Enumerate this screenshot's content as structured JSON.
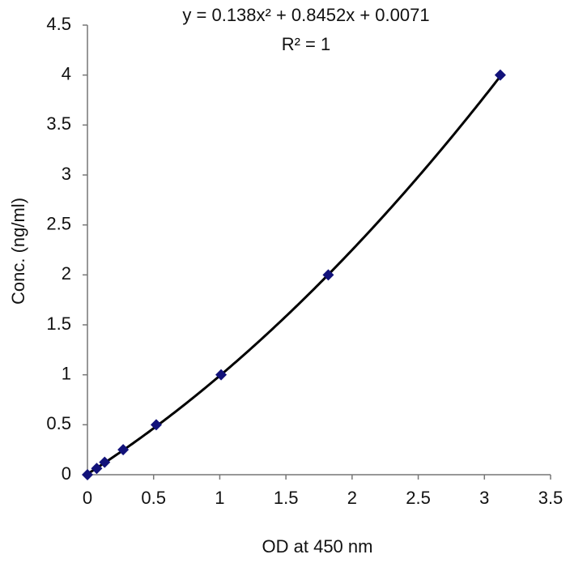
{
  "chart_data": {
    "type": "scatter",
    "equation": "y = 0.138x² + 0.8452x + 0.0071",
    "r_squared": "R² = 1",
    "x_label": "OD at 450 nm",
    "y_label": "Conc. (ng/ml)",
    "x": [
      0,
      0.07,
      0.13,
      0.27,
      0.52,
      1.01,
      1.82,
      3.12
    ],
    "values": [
      0,
      0.0625,
      0.125,
      0.25,
      0.5,
      1,
      2,
      4
    ],
    "color": "#12127a",
    "trendline": {
      "coefficients": [
        0.138,
        0.8452,
        0.0071
      ],
      "color": "#000000"
    },
    "xlim": [
      0,
      3.5
    ],
    "xticks": [
      0,
      0.5,
      1,
      1.5,
      2,
      2.5,
      3,
      3.5
    ],
    "ylim": [
      0,
      4.5
    ],
    "yticks": [
      0,
      0.5,
      1,
      1.5,
      2,
      2.5,
      3,
      3.5,
      4,
      4.5
    ],
    "grid": false
  }
}
